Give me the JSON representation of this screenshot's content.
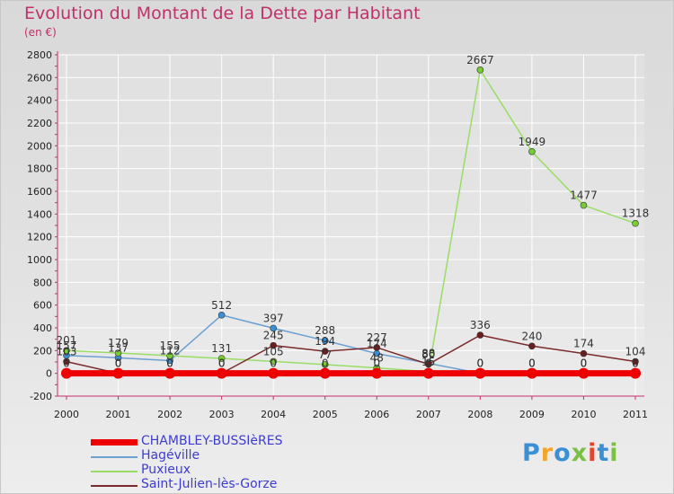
{
  "header": {
    "title": "Evolution du Montant de la Dette par Habitant",
    "subtitle": "(en €)"
  },
  "logo": {
    "text": "Proxiti",
    "colors": [
      "#3d8fd4",
      "#f2a52b",
      "#3d8fd4",
      "#7ac143",
      "#e2452c",
      "#3d8fd4",
      "#7ac143"
    ]
  },
  "chart_data": {
    "type": "line",
    "title": "Evolution du Montant de la Dette par Habitant",
    "subtitle": "(en €)",
    "x": [
      "2000",
      "2001",
      "2002",
      "2003",
      "2004",
      "2005",
      "2006",
      "2007",
      "2008",
      "2009",
      "2010",
      "2011"
    ],
    "ylim": [
      -200,
      2800
    ],
    "yticks": [
      -200,
      0,
      200,
      400,
      600,
      800,
      1000,
      1200,
      1400,
      1600,
      1800,
      2000,
      2200,
      2400,
      2600,
      2800
    ],
    "grid": true,
    "legend_position": "bottom-left",
    "series": [
      {
        "name": "CHAMBLEY-BUSSIèRES",
        "color": "#ee0000",
        "values": [
          0,
          0,
          0,
          0,
          0,
          0,
          0,
          0,
          0,
          0,
          0,
          0
        ],
        "labels": [
          "0",
          "0",
          "0",
          "0",
          "0",
          "0",
          "0",
          "0",
          "0",
          "0",
          "0",
          "0"
        ]
      },
      {
        "name": "Hagéville",
        "color": "#6a9fd0",
        "values": [
          157,
          137,
          112,
          512,
          397,
          288,
          174,
          88,
          0,
          0,
          0,
          0
        ],
        "labels": [
          "157",
          "137",
          "112",
          "512",
          "397",
          "288",
          "174",
          "88",
          "0",
          "0",
          "0",
          "0"
        ]
      },
      {
        "name": "Puxieux",
        "color": "#99dd66",
        "values": [
          201,
          179,
          155,
          131,
          105,
          77,
          48,
          15,
          2667,
          1949,
          1477,
          1318
        ],
        "labels": [
          "201",
          "179",
          "155",
          "131",
          "105",
          "77",
          "48",
          "15",
          "2667",
          "1949",
          "1477",
          "1318"
        ]
      },
      {
        "name": "Saint-Julien-lès-Gorze",
        "color": "#7a2a2a",
        "values": [
          103,
          0,
          0,
          0,
          245,
          194,
          227,
          80,
          336,
          240,
          174,
          104
        ],
        "labels": [
          "103",
          "0",
          "0",
          "0",
          "245",
          "194",
          "227",
          "80",
          "336",
          "240",
          "174",
          "104"
        ]
      }
    ]
  }
}
